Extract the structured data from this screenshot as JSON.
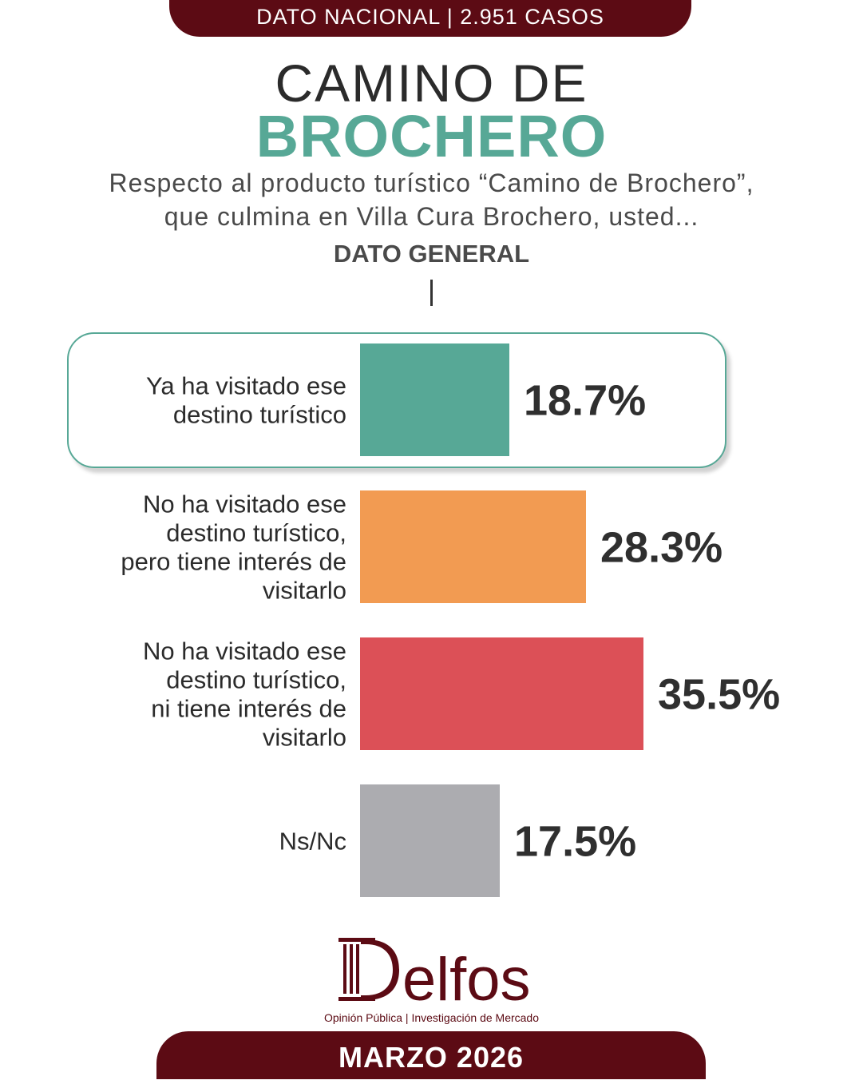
{
  "header": {
    "banner_text": "DATO NACIONAL | 2.951 CASOS"
  },
  "title": {
    "line1": "CAMINO DE",
    "line2": "BROCHERO"
  },
  "subtitle": {
    "line1": "Respecto al producto turístico “Camino de Brochero”,",
    "line2": "que culmina en Villa Cura Brochero, usted..."
  },
  "section_label": "DATO GENERAL",
  "chart_data": {
    "type": "bar",
    "orientation": "horizontal",
    "categories": [
      [
        "Ya ha visitado ese",
        "destino turístico"
      ],
      [
        "No ha visitado ese",
        "destino turístico,",
        "pero tiene interés de",
        "visitarlo"
      ],
      [
        "No ha visitado ese",
        "destino turístico,",
        "ni tiene interés de",
        "visitarlo"
      ],
      [
        "Ns/Nc"
      ]
    ],
    "values": [
      18.7,
      28.3,
      35.5,
      17.5
    ],
    "value_labels": [
      "18.7%",
      "28.3%",
      "35.5%",
      "17.5%"
    ],
    "colors": [
      "#57a896",
      "#f29b52",
      "#dc5057",
      "#acacb0"
    ],
    "highlighted_index": 0,
    "grid": false
  },
  "logo": {
    "name": "Delfos",
    "tagline": "Opinión Pública | Investigación de Mercado",
    "icon": "column-pillar-icon"
  },
  "footer": {
    "banner_text": "MARZO 2026"
  },
  "colors": {
    "brand": "#5c0b14",
    "accent": "#57a896"
  }
}
